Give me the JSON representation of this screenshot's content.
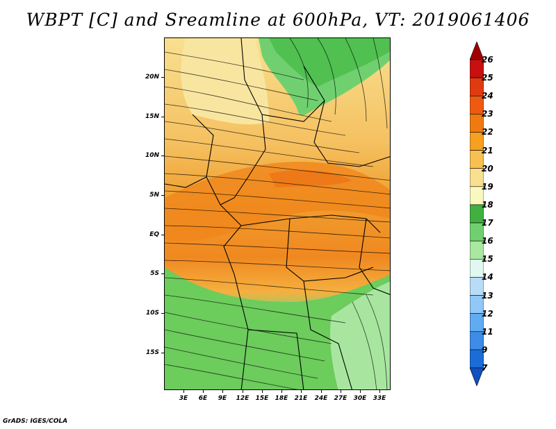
{
  "title": "WBPT [C] and Sreamline at 600hPa, VT: 2019061406",
  "footer": "GrADS: IGES/COLA",
  "lat_labels": [
    "20N",
    "15N",
    "10N",
    "5N",
    "EQ",
    "5S",
    "10S",
    "15S"
  ],
  "lon_labels": [
    "3E",
    "6E",
    "9E",
    "12E",
    "15E",
    "18E",
    "21E",
    "24E",
    "27E",
    "30E",
    "33E"
  ],
  "colorbar": {
    "levels": [
      "26",
      "25",
      "24",
      "23",
      "22",
      "21",
      "20",
      "19",
      "18",
      "17",
      "16",
      "15",
      "14",
      "13",
      "12",
      "11",
      "9",
      "7"
    ],
    "colors": [
      "#a00000",
      "#c81010",
      "#e03a10",
      "#f05a10",
      "#f07a10",
      "#f5a020",
      "#f8c050",
      "#f8e090",
      "#f8f8c0",
      "#40b040",
      "#70d070",
      "#a8e8a0",
      "#e0f8f0",
      "#b8dcf8",
      "#90c8f8",
      "#60acf0",
      "#3c8ce8",
      "#1c6cd8",
      "#1050c0"
    ],
    "apex_top": "#a00000",
    "apex_bottom": "#1050c0"
  }
}
